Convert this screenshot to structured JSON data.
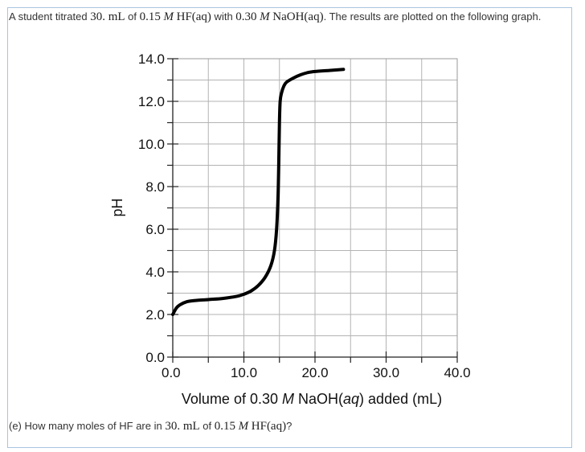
{
  "problem": {
    "intro_prefix": "A student titrated ",
    "intro_volume": "30. mL",
    "intro_of1": " of ",
    "intro_acid_conc": "0.15",
    "intro_M1": "M",
    "intro_acid": "HF(aq)",
    "intro_with": " with ",
    "intro_base_conc": "0.30",
    "intro_M2": "M",
    "intro_base": "NaOH(aq)",
    "intro_suffix": ". The results are plotted on the following graph.",
    "question_prefix": "(e) How many moles of HF are in ",
    "question_volume": "30. mL",
    "question_of": " of ",
    "question_conc": "0.15",
    "question_M": "M",
    "question_acid": "HF(aq)",
    "question_suffix": "?"
  },
  "chart_data": {
    "type": "line",
    "xlabel": "Volume of 0.30 M NaOH(aq) added (mL)",
    "xlabel_parts": [
      "Volume of 0.30 ",
      "M",
      " NaOH(",
      "aq",
      ") added (mL)"
    ],
    "ylabel": "pH",
    "xlim": [
      0,
      40
    ],
    "ylim": [
      0,
      14
    ],
    "x_ticks": [
      "0.0",
      "10.0",
      "20.0",
      "30.0",
      "40.0"
    ],
    "y_ticks": [
      "0.0",
      "2.0",
      "4.0",
      "6.0",
      "8.0",
      "10.0",
      "12.0",
      "14.0"
    ],
    "grid": true,
    "series": [
      {
        "color": "#000000",
        "x": [
          0,
          0.5,
          1,
          2,
          3,
          5,
          7,
          9,
          10,
          11,
          12,
          13,
          13.8,
          14.3,
          14.6,
          14.8,
          14.9,
          15.0,
          15.1,
          15.3,
          15.6,
          16,
          17,
          18,
          19,
          20,
          22,
          24
        ],
        "y": [
          2.0,
          2.3,
          2.45,
          2.6,
          2.65,
          2.7,
          2.75,
          2.85,
          2.95,
          3.1,
          3.35,
          3.75,
          4.3,
          5.0,
          6.0,
          7.5,
          9.0,
          11.0,
          12.0,
          12.4,
          12.7,
          12.9,
          13.1,
          13.25,
          13.35,
          13.4,
          13.45,
          13.5
        ]
      }
    ]
  }
}
